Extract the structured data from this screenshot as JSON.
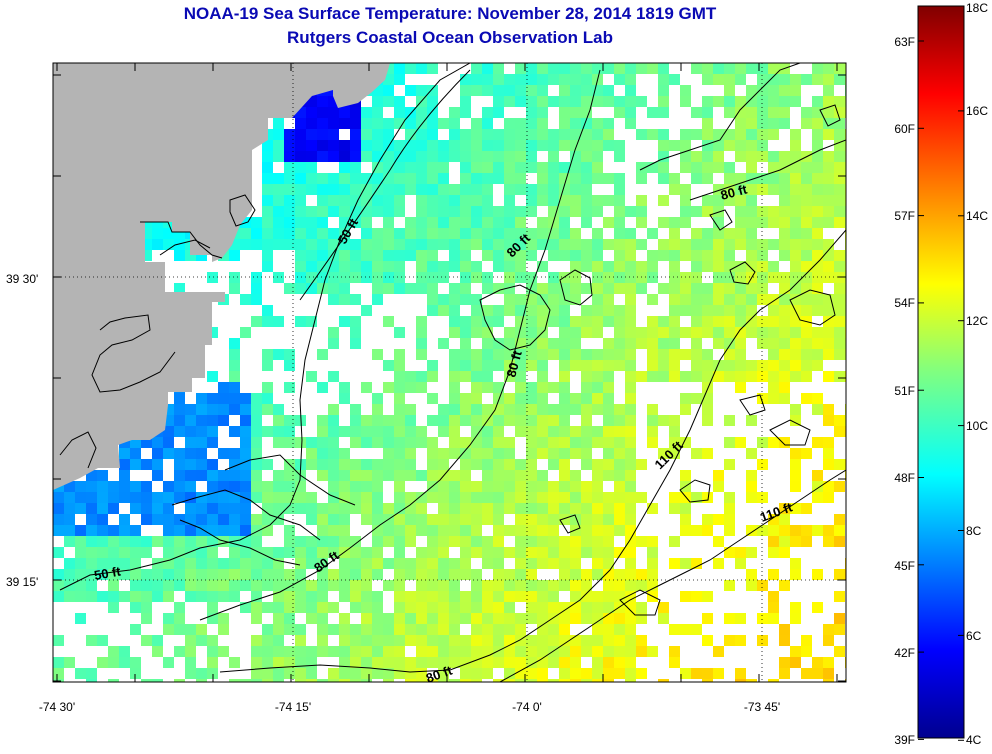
{
  "title": "NOAA-19 Sea Surface Temperature:  November 28, 2014 1819 GMT",
  "subtitle": "Rutgers Coastal Ocean Observation Lab",
  "map": {
    "lon_ticks": [
      "-74 30'",
      "-74 15'",
      "-74 0'",
      "-73 45'"
    ],
    "lat_ticks": [
      "39 30'",
      "39 15'"
    ],
    "contour_labels": [
      "50 ft",
      "50 ft",
      "80 ft",
      "80 ft",
      "80 ft",
      "80 ft",
      "80 ft",
      "110 ft",
      "110 ft"
    ],
    "colors": {
      "land": "#b4b4b4",
      "nodata": "#ffffff"
    }
  },
  "colorbar": {
    "fahrenheit": [
      "63F",
      "60F",
      "57F",
      "54F",
      "51F",
      "48F",
      "45F",
      "42F",
      "39F"
    ],
    "celsius": [
      "18C",
      "16C",
      "14C",
      "12C",
      "10C",
      "8C",
      "6C",
      "4C"
    ]
  }
}
